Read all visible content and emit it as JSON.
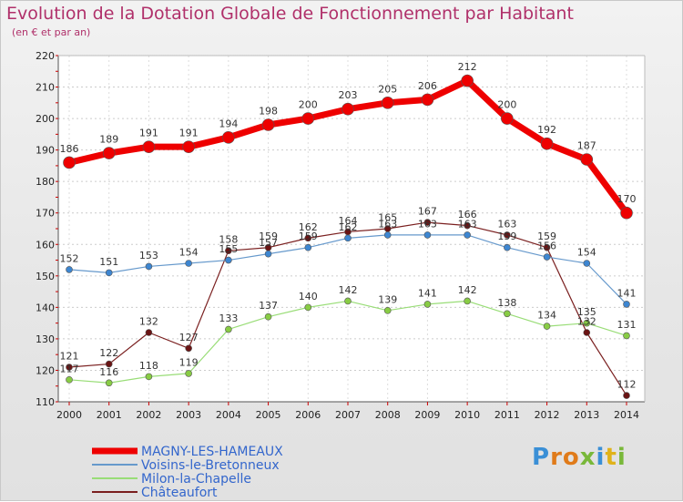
{
  "title": "Evolution de la Dotation Globale de Fonctionnement par Habitant",
  "subtitle": "(en € et par an)",
  "logo": [
    "P",
    "r",
    "o",
    "x",
    "i",
    "t",
    "i"
  ],
  "colors": {
    "title": "#b0306a",
    "legend_text": "#3366cc"
  },
  "chart_data": {
    "type": "line",
    "x": [
      "2000",
      "2001",
      "2002",
      "2003",
      "2004",
      "2005",
      "2006",
      "2007",
      "2008",
      "2009",
      "2010",
      "2011",
      "2012",
      "2013",
      "2014"
    ],
    "ylim": [
      110,
      220
    ],
    "yticks": [
      110,
      120,
      130,
      140,
      150,
      160,
      170,
      180,
      190,
      200,
      210,
      220
    ],
    "grid": "horizontal-dashed",
    "legend_placement": "bottom-left",
    "series": [
      {
        "name": "Châteaufort",
        "color": "#7a1f1f",
        "marker": "#6a1414",
        "width": 1.2,
        "radius": 3.5,
        "labels_above": true,
        "values": [
          121,
          122,
          132,
          127,
          158,
          159,
          162,
          164,
          165,
          167,
          166,
          163,
          159,
          132,
          112
        ]
      },
      {
        "name": "Milon-la-Chapelle",
        "color": "#99dd77",
        "marker": "#88cc44",
        "width": 1.2,
        "radius": 3.5,
        "labels_above": true,
        "values": [
          117,
          116,
          118,
          119,
          133,
          137,
          140,
          142,
          139,
          141,
          142,
          138,
          134,
          135,
          131
        ]
      },
      {
        "name": "Voisins-le-Bretonneux",
        "color": "#6699cc",
        "marker": "#3d86d1",
        "width": 1.2,
        "radius": 3.5,
        "labels_above": true,
        "values": [
          152,
          151,
          153,
          154,
          155,
          157,
          159,
          162,
          163,
          163,
          163,
          159,
          156,
          154,
          141
        ]
      },
      {
        "name": "MAGNY-LES-HAMEAUX",
        "color": "#ee0000",
        "marker": "#ee0000",
        "width": 7,
        "radius": 6.5,
        "labels_above": true,
        "values": [
          186,
          189,
          191,
          191,
          194,
          198,
          200,
          203,
          205,
          206,
          212,
          200,
          192,
          187,
          170
        ]
      }
    ],
    "legend_order": [
      "MAGNY-LES-HAMEAUX",
      "Voisins-le-Bretonneux",
      "Milon-la-Chapelle",
      "Châteaufort"
    ]
  }
}
